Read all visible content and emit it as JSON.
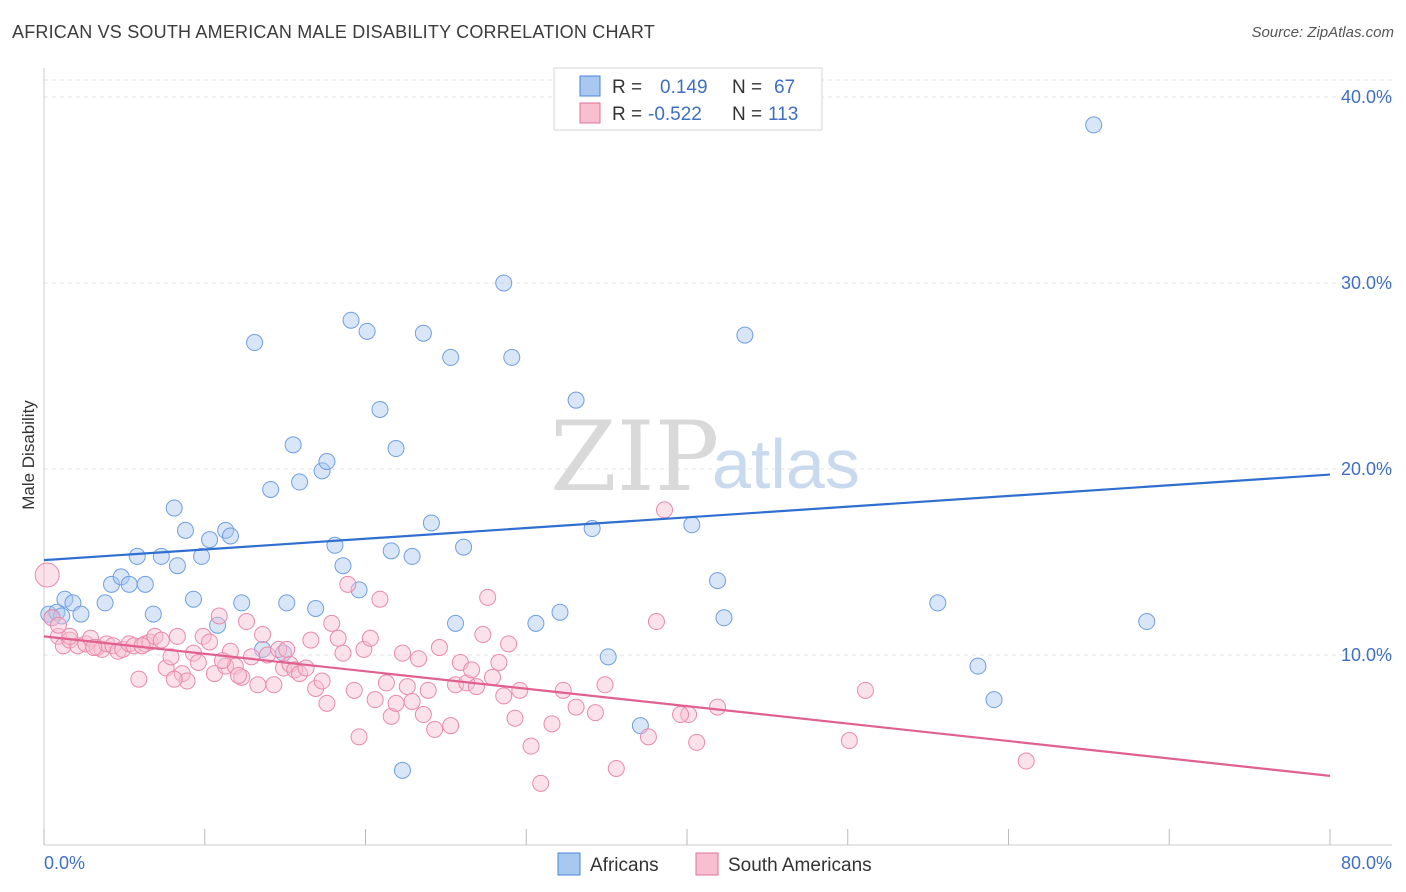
{
  "header": {
    "title": "AFRICAN VS SOUTH AMERICAN MALE DISABILITY CORRELATION CHART",
    "source": "Source: ZipAtlas.com"
  },
  "watermark": {
    "zip": "ZIP",
    "atlas": "atlas"
  },
  "legend": {
    "rows": [
      {
        "r_label": "R =",
        "r_value": "0.149",
        "n_label": "N =",
        "n_value": "67",
        "color": "#a9c8ef",
        "stroke": "#4a86d9"
      },
      {
        "r_label": "R =",
        "r_value": "-0.522",
        "n_label": "N =",
        "n_value": "113",
        "color": "#f7bfd0",
        "stroke": "#e27097"
      }
    ]
  },
  "bottom_legend": [
    {
      "label": "Africans",
      "color": "#a9c8ef",
      "stroke": "#4a86d9"
    },
    {
      "label": "South Americans",
      "color": "#f7bfd0",
      "stroke": "#e27097"
    }
  ],
  "chart_data": {
    "type": "scatter",
    "title": "AFRICAN VS SOUTH AMERICAN MALE DISABILITY CORRELATION CHART",
    "xlabel": "",
    "ylabel": "Male Disability",
    "xlim": [
      0,
      80
    ],
    "ylim": [
      0,
      40
    ],
    "x_tick_labels": [
      "0.0%",
      "80.0%"
    ],
    "y_tick_labels": [
      "10.0%",
      "20.0%",
      "30.0%",
      "40.0%"
    ],
    "y_ticks": [
      10,
      20,
      30,
      40
    ],
    "grid": true,
    "legend_placement": "top-center",
    "colors": {
      "africans": "#4a86d9",
      "south_americans": "#e27097"
    },
    "series": [
      {
        "name": "Africans",
        "trend": {
          "x": [
            0,
            80
          ],
          "y": [
            15.1,
            19.7
          ]
        },
        "points": [
          [
            0.3,
            12.2
          ],
          [
            0.5,
            12.0
          ],
          [
            0.8,
            12.3
          ],
          [
            1.3,
            13.0
          ],
          [
            1.8,
            12.8
          ],
          [
            2.3,
            12.2
          ],
          [
            3.8,
            12.8
          ],
          [
            4.2,
            13.8
          ],
          [
            4.8,
            14.2
          ],
          [
            5.3,
            13.8
          ],
          [
            5.8,
            15.3
          ],
          [
            6.3,
            13.8
          ],
          [
            6.8,
            12.2
          ],
          [
            7.3,
            15.3
          ],
          [
            8.1,
            17.9
          ],
          [
            8.3,
            14.8
          ],
          [
            8.8,
            16.7
          ],
          [
            9.3,
            13.0
          ],
          [
            9.8,
            15.3
          ],
          [
            10.3,
            16.2
          ],
          [
            10.8,
            11.6
          ],
          [
            11.3,
            16.7
          ],
          [
            11.6,
            16.4
          ],
          [
            12.3,
            12.8
          ],
          [
            13.1,
            26.8
          ],
          [
            13.6,
            10.3
          ],
          [
            14.1,
            18.9
          ],
          [
            14.9,
            10.1
          ],
          [
            15.1,
            12.8
          ],
          [
            15.5,
            21.3
          ],
          [
            15.9,
            19.3
          ],
          [
            16.9,
            12.5
          ],
          [
            17.3,
            19.9
          ],
          [
            17.6,
            20.4
          ],
          [
            18.1,
            15.9
          ],
          [
            18.6,
            14.8
          ],
          [
            19.1,
            28.0
          ],
          [
            19.6,
            13.5
          ],
          [
            20.1,
            27.4
          ],
          [
            20.9,
            23.2
          ],
          [
            21.6,
            15.6
          ],
          [
            21.9,
            21.1
          ],
          [
            22.3,
            3.8
          ],
          [
            22.9,
            15.3
          ],
          [
            23.6,
            27.3
          ],
          [
            24.1,
            17.1
          ],
          [
            25.3,
            26.0
          ],
          [
            25.6,
            11.7
          ],
          [
            26.1,
            15.8
          ],
          [
            28.6,
            30.0
          ],
          [
            29.1,
            26.0
          ],
          [
            30.6,
            11.7
          ],
          [
            32.1,
            12.3
          ],
          [
            33.1,
            23.7
          ],
          [
            34.1,
            16.8
          ],
          [
            35.1,
            9.9
          ],
          [
            37.1,
            6.2
          ],
          [
            40.3,
            17.0
          ],
          [
            41.9,
            14.0
          ],
          [
            42.3,
            12.0
          ],
          [
            43.6,
            27.2
          ],
          [
            55.6,
            12.8
          ],
          [
            58.1,
            9.4
          ],
          [
            59.1,
            7.6
          ],
          [
            65.3,
            38.5
          ],
          [
            68.6,
            11.8
          ],
          [
            1.1,
            12.1
          ]
        ]
      },
      {
        "name": "South Americans",
        "trend": {
          "x": [
            0,
            80
          ],
          "y": [
            11.0,
            3.5
          ]
        },
        "points": [
          [
            0.2,
            14.3
          ],
          [
            0.5,
            12.0
          ],
          [
            0.9,
            11.0
          ],
          [
            1.2,
            10.5
          ],
          [
            1.6,
            10.8
          ],
          [
            2.1,
            10.5
          ],
          [
            2.6,
            10.6
          ],
          [
            2.9,
            10.9
          ],
          [
            3.3,
            10.4
          ],
          [
            3.6,
            10.3
          ],
          [
            3.9,
            10.6
          ],
          [
            4.3,
            10.5
          ],
          [
            4.6,
            10.2
          ],
          [
            4.9,
            10.3
          ],
          [
            5.3,
            10.6
          ],
          [
            5.6,
            10.5
          ],
          [
            5.9,
            8.7
          ],
          [
            6.3,
            10.6
          ],
          [
            6.6,
            10.7
          ],
          [
            6.9,
            11.0
          ],
          [
            7.3,
            10.8
          ],
          [
            7.6,
            9.3
          ],
          [
            7.9,
            9.9
          ],
          [
            8.3,
            11.0
          ],
          [
            8.6,
            9.0
          ],
          [
            8.9,
            8.6
          ],
          [
            9.3,
            10.1
          ],
          [
            9.6,
            9.6
          ],
          [
            9.9,
            11.0
          ],
          [
            10.3,
            10.7
          ],
          [
            10.6,
            9.0
          ],
          [
            10.9,
            12.1
          ],
          [
            11.3,
            9.4
          ],
          [
            11.6,
            10.2
          ],
          [
            11.9,
            9.4
          ],
          [
            12.3,
            8.8
          ],
          [
            12.6,
            11.8
          ],
          [
            12.9,
            9.9
          ],
          [
            13.3,
            8.4
          ],
          [
            13.6,
            11.1
          ],
          [
            13.9,
            10.0
          ],
          [
            14.3,
            8.4
          ],
          [
            14.6,
            10.3
          ],
          [
            14.9,
            9.3
          ],
          [
            15.3,
            9.5
          ],
          [
            15.6,
            9.2
          ],
          [
            15.9,
            9.0
          ],
          [
            16.3,
            9.3
          ],
          [
            16.6,
            10.8
          ],
          [
            16.9,
            8.2
          ],
          [
            17.3,
            8.6
          ],
          [
            17.6,
            7.4
          ],
          [
            17.9,
            11.7
          ],
          [
            18.3,
            10.9
          ],
          [
            18.6,
            10.1
          ],
          [
            18.9,
            13.8
          ],
          [
            19.3,
            8.1
          ],
          [
            19.6,
            5.6
          ],
          [
            19.9,
            10.3
          ],
          [
            20.3,
            10.9
          ],
          [
            20.6,
            7.6
          ],
          [
            20.9,
            13.0
          ],
          [
            21.3,
            8.5
          ],
          [
            21.6,
            6.7
          ],
          [
            21.9,
            7.4
          ],
          [
            22.3,
            10.1
          ],
          [
            22.6,
            8.3
          ],
          [
            22.9,
            7.5
          ],
          [
            23.3,
            9.8
          ],
          [
            23.6,
            6.8
          ],
          [
            23.9,
            8.1
          ],
          [
            24.3,
            6.0
          ],
          [
            24.6,
            10.4
          ],
          [
            25.3,
            6.2
          ],
          [
            25.6,
            8.4
          ],
          [
            25.9,
            9.6
          ],
          [
            26.3,
            8.5
          ],
          [
            26.6,
            9.2
          ],
          [
            26.9,
            8.3
          ],
          [
            27.3,
            11.1
          ],
          [
            27.6,
            13.1
          ],
          [
            27.9,
            8.8
          ],
          [
            28.3,
            9.6
          ],
          [
            28.6,
            7.8
          ],
          [
            28.9,
            10.6
          ],
          [
            29.3,
            6.6
          ],
          [
            29.6,
            8.1
          ],
          [
            30.3,
            5.1
          ],
          [
            30.9,
            3.1
          ],
          [
            31.6,
            6.3
          ],
          [
            32.3,
            8.1
          ],
          [
            33.1,
            7.2
          ],
          [
            34.3,
            6.9
          ],
          [
            34.9,
            8.4
          ],
          [
            35.6,
            3.9
          ],
          [
            37.6,
            5.6
          ],
          [
            38.1,
            11.8
          ],
          [
            40.1,
            6.8
          ],
          [
            40.6,
            5.3
          ],
          [
            41.9,
            7.2
          ],
          [
            50.1,
            5.4
          ],
          [
            51.1,
            8.1
          ],
          [
            61.1,
            4.3
          ],
          [
            38.6,
            17.8
          ],
          [
            39.6,
            6.8
          ],
          [
            12.1,
            8.9
          ],
          [
            8.1,
            8.7
          ],
          [
            6.1,
            10.5
          ],
          [
            3.1,
            10.4
          ],
          [
            1.6,
            11.0
          ],
          [
            11.1,
            9.7
          ],
          [
            15.1,
            10.3
          ],
          [
            0.9,
            11.6
          ]
        ]
      }
    ]
  }
}
